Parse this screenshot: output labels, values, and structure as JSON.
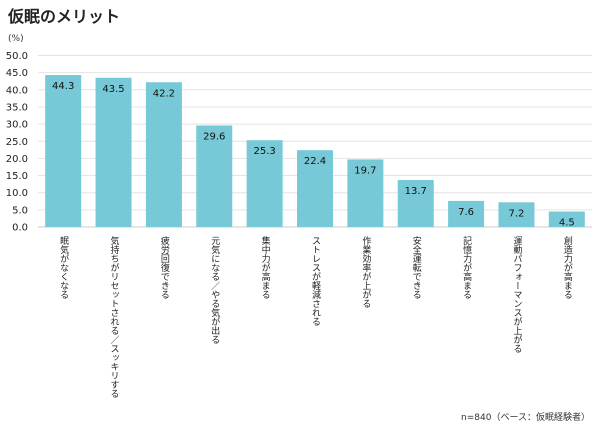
{
  "chart_data": {
    "type": "bar",
    "title": "仮眠のメリット",
    "ylabel": "(%)",
    "xlabel": "",
    "ylim": [
      0,
      50
    ],
    "yticks": [
      "0.0",
      "5.0",
      "10.0",
      "15.0",
      "20.0",
      "25.0",
      "30.0",
      "35.0",
      "40.0",
      "45.0",
      "50.0"
    ],
    "categories": [
      "眠気がなくなる",
      "気持ちがリセットされる／スッキリする",
      "疲労回復できる",
      "元気になる／やる気が出る",
      "集中力が高まる",
      "ストレスが軽減される",
      "作業効率が上がる",
      "安全運転できる",
      "記憶力が高まる",
      "運動パフォーマンスが上がる",
      "創造力が高まる"
    ],
    "values": [
      44.3,
      43.5,
      42.2,
      29.6,
      25.3,
      22.4,
      19.7,
      13.7,
      7.6,
      7.2,
      4.5
    ],
    "value_labels": [
      "44.3",
      "43.5",
      "42.2",
      "29.6",
      "25.3",
      "22.4",
      "19.7",
      "13.7",
      "7.6",
      "7.2",
      "4.5"
    ],
    "bar_color": "#77c9d7",
    "grid": true
  },
  "footnote": "n=840（ベース：仮眠経験者）"
}
